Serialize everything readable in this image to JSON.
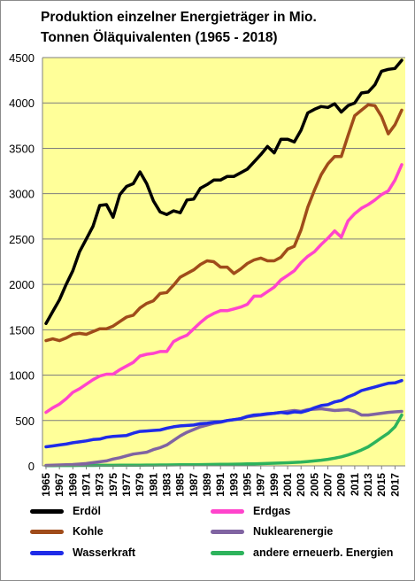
{
  "chart_data": {
    "type": "line",
    "title": [
      "Produktion einzelner Energieträger in Mio.",
      "Tonnen Öläquivalenten (1965 - 2018)"
    ],
    "xlabel": "",
    "ylabel": "",
    "ylim": [
      0,
      4500
    ],
    "yticks": [
      "0",
      "500",
      "1000",
      "1500",
      "2000",
      "2500",
      "3000",
      "3500",
      "4000",
      "4500"
    ],
    "xtick_labels": [
      "1965",
      "1967",
      "1969",
      "1971",
      "1973",
      "1975",
      "1977",
      "1979",
      "1981",
      "1983",
      "1985",
      "1987",
      "1989",
      "1991",
      "1993",
      "1995",
      "1997",
      "1999",
      "2001",
      "2003",
      "2005",
      "2007",
      "2009",
      "2011",
      "2013",
      "2015",
      "2017"
    ],
    "x": [
      1965,
      1966,
      1967,
      1968,
      1969,
      1970,
      1971,
      1972,
      1973,
      1974,
      1975,
      1976,
      1977,
      1978,
      1979,
      1980,
      1981,
      1982,
      1983,
      1984,
      1985,
      1986,
      1987,
      1988,
      1989,
      1990,
      1991,
      1992,
      1993,
      1994,
      1995,
      1996,
      1997,
      1998,
      1999,
      2000,
      2001,
      2002,
      2003,
      2004,
      2005,
      2006,
      2007,
      2008,
      2009,
      2010,
      2011,
      2012,
      2013,
      2014,
      2015,
      2016,
      2017,
      2018
    ],
    "grid": true,
    "plot_background": "#ffff99",
    "legend_position": "bottom",
    "series": [
      {
        "name": "Erdöl",
        "color": "#000000",
        "values": [
          1570,
          1700,
          1830,
          2000,
          2150,
          2360,
          2500,
          2640,
          2870,
          2880,
          2740,
          2990,
          3080,
          3110,
          3240,
          3110,
          2920,
          2800,
          2770,
          2810,
          2790,
          2930,
          2940,
          3060,
          3100,
          3150,
          3150,
          3190,
          3190,
          3230,
          3270,
          3350,
          3430,
          3520,
          3450,
          3600,
          3600,
          3570,
          3700,
          3890,
          3930,
          3960,
          3950,
          3990,
          3900,
          3970,
          4000,
          4110,
          4120,
          4200,
          4350,
          4370,
          4380,
          4470
        ]
      },
      {
        "name": "Erdgas",
        "color": "#ff44cc",
        "values": [
          590,
          640,
          680,
          740,
          810,
          850,
          900,
          950,
          990,
          1010,
          1010,
          1060,
          1100,
          1140,
          1210,
          1230,
          1240,
          1260,
          1260,
          1370,
          1410,
          1440,
          1510,
          1580,
          1640,
          1680,
          1710,
          1710,
          1730,
          1750,
          1780,
          1870,
          1870,
          1920,
          1970,
          2050,
          2100,
          2150,
          2240,
          2310,
          2360,
          2440,
          2510,
          2590,
          2520,
          2700,
          2780,
          2840,
          2880,
          2930,
          2990,
          3030,
          3150,
          3320
        ]
      },
      {
        "name": "Kohle",
        "color": "#a04c1a",
        "values": [
          1380,
          1400,
          1380,
          1410,
          1450,
          1460,
          1450,
          1480,
          1510,
          1510,
          1540,
          1590,
          1640,
          1660,
          1740,
          1790,
          1820,
          1900,
          1910,
          1990,
          2080,
          2120,
          2160,
          2220,
          2260,
          2250,
          2190,
          2190,
          2120,
          2170,
          2230,
          2270,
          2290,
          2260,
          2260,
          2300,
          2390,
          2420,
          2600,
          2850,
          3040,
          3210,
          3330,
          3410,
          3410,
          3640,
          3860,
          3920,
          3980,
          3970,
          3850,
          3660,
          3760,
          3920
        ]
      },
      {
        "name": "Nuklearenergie",
        "color": "#8064a2",
        "values": [
          5,
          8,
          10,
          12,
          15,
          20,
          25,
          35,
          45,
          55,
          75,
          90,
          110,
          130,
          140,
          150,
          180,
          200,
          230,
          280,
          330,
          370,
          400,
          430,
          450,
          470,
          480,
          500,
          510,
          520,
          540,
          550,
          560,
          570,
          580,
          590,
          600,
          610,
          600,
          620,
          625,
          630,
          620,
          610,
          615,
          620,
          600,
          560,
          560,
          570,
          580,
          590,
          595,
          600
        ]
      },
      {
        "name": "Wasserkraft",
        "color": "#1f2be8",
        "values": [
          210,
          220,
          230,
          240,
          255,
          265,
          275,
          290,
          295,
          315,
          325,
          330,
          335,
          360,
          380,
          385,
          390,
          395,
          415,
          430,
          440,
          445,
          450,
          465,
          470,
          480,
          485,
          500,
          510,
          520,
          545,
          560,
          565,
          575,
          580,
          590,
          580,
          595,
          590,
          610,
          640,
          665,
          675,
          705,
          720,
          760,
          790,
          830,
          850,
          870,
          890,
          910,
          915,
          940
        ]
      },
      {
        "name": "andere erneuerb. Energien",
        "color": "#2db35c",
        "values": [
          3,
          3,
          4,
          4,
          4,
          5,
          5,
          5,
          6,
          6,
          6,
          7,
          7,
          8,
          8,
          9,
          9,
          10,
          10,
          11,
          12,
          13,
          13,
          14,
          15,
          16,
          17,
          18,
          19,
          20,
          21,
          22,
          24,
          26,
          29,
          31,
          34,
          38,
          42,
          48,
          55,
          62,
          72,
          85,
          100,
          120,
          145,
          175,
          210,
          260,
          310,
          360,
          430,
          560
        ]
      }
    ]
  }
}
